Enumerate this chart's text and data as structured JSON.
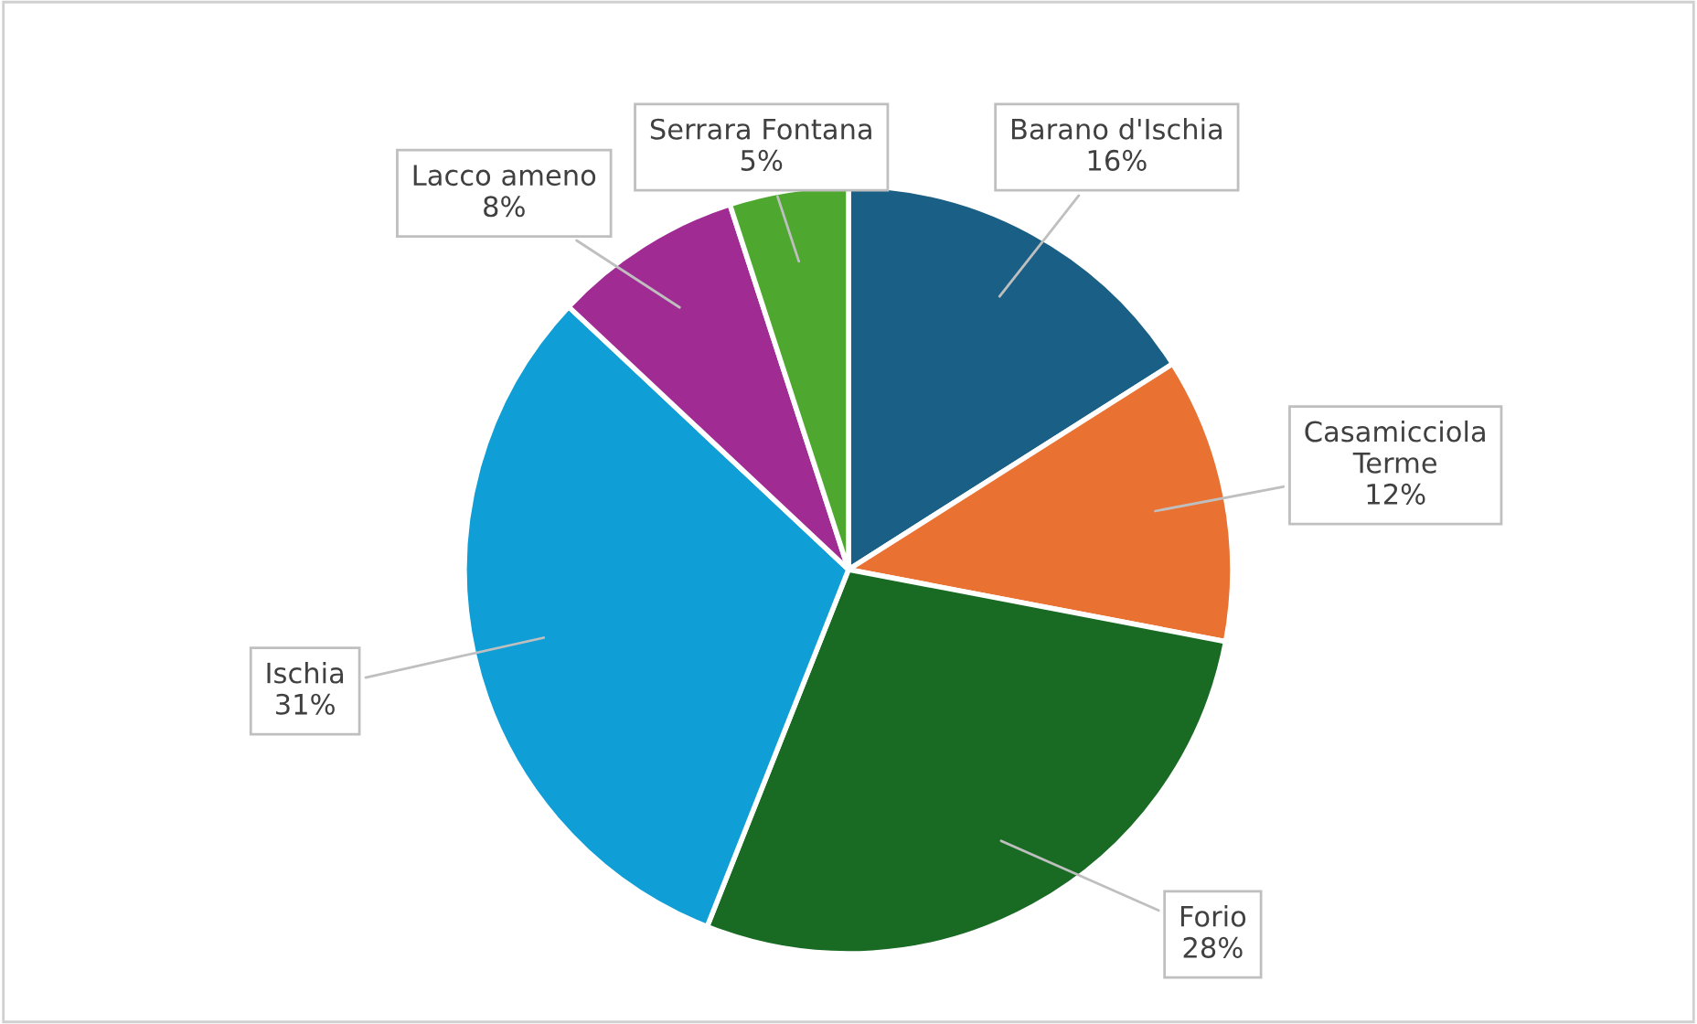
{
  "chart_data": {
    "type": "pie",
    "categories": [
      "Barano d'Ischia",
      "Casamicciola Terme",
      "Forio",
      "Ischia",
      "Lacco ameno",
      "Serrara Fontana"
    ],
    "values": [
      16,
      12,
      28,
      31,
      8,
      5
    ],
    "colors": [
      "#1a5f85",
      "#e97132",
      "#196b24",
      "#0f9ed5",
      "#a02b93",
      "#4ea72e"
    ],
    "value_labels": [
      "16%",
      "12%",
      "28%",
      "31%",
      "8%",
      "5%"
    ],
    "legend": false
  }
}
